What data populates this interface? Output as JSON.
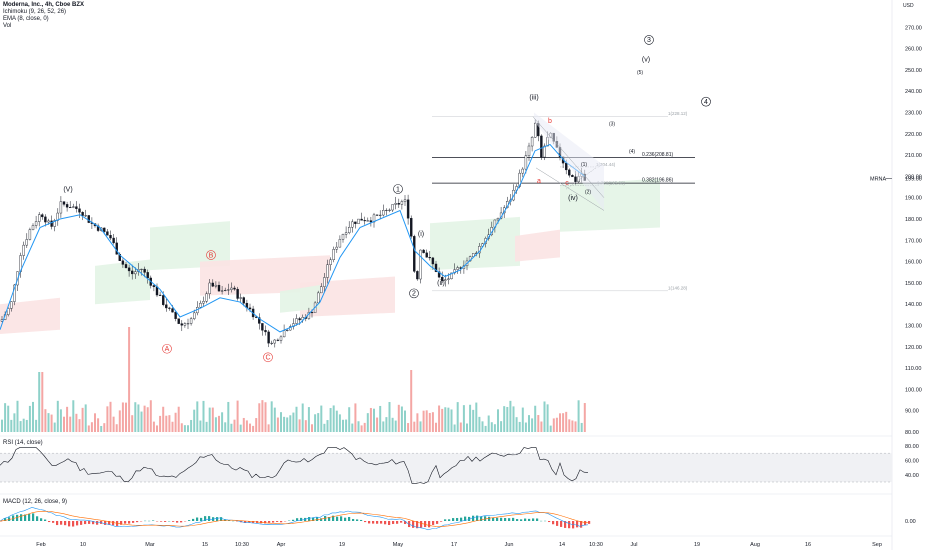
{
  "legend": {
    "title": "Moderna, Inc., 4h, Cboe BZX",
    "ichimoku": "Ichimoku (9, 26, 52, 26)",
    "ema": "EMA (8, close, 0)",
    "vol": "Vol",
    "rsi": "RSI (14, close)",
    "macd": "MACD (12, 26, close, 9)"
  },
  "currency": "USD",
  "price_tag": {
    "symbol": "MRNA",
    "value": "199.00"
  },
  "colors": {
    "up": "#26a69a",
    "down": "#ef5350",
    "ema": "#2196f3",
    "rsi": "#131722",
    "cloud_bull": "#e3f4e5",
    "cloud_bear": "#fbe3e3"
  },
  "chart_data": {
    "type": "candlestick",
    "price_axis": {
      "ylim": [
        80,
        280
      ],
      "ticks": [
        "270.00",
        "260.00",
        "250.00",
        "240.00",
        "230.00",
        "220.00",
        "210.00",
        "200.00",
        "190.00",
        "180.00",
        "170.00",
        "160.00",
        "150.00",
        "140.00",
        "130.00",
        "120.00",
        "110.00",
        "100.00",
        "90.00",
        "80.00"
      ]
    },
    "x_ticks": [
      "Feb",
      "10",
      "Mar",
      "15",
      "10:30",
      "Apr",
      "19",
      "May",
      "17",
      "Jun",
      "14",
      "10:30",
      "Jul",
      "19",
      "Aug",
      "16",
      "Sep"
    ],
    "price_path": [
      [
        0,
        132
      ],
      [
        10,
        140
      ],
      [
        20,
        165
      ],
      [
        30,
        176
      ],
      [
        40,
        183
      ],
      [
        50,
        176
      ],
      [
        60,
        187
      ],
      [
        70,
        186
      ],
      [
        80,
        184
      ],
      [
        90,
        178
      ],
      [
        100,
        175
      ],
      [
        110,
        171
      ],
      [
        120,
        160
      ],
      [
        130,
        154
      ],
      [
        140,
        157
      ],
      [
        150,
        150
      ],
      [
        160,
        142
      ],
      [
        170,
        136
      ],
      [
        180,
        130
      ],
      [
        190,
        133
      ],
      [
        200,
        140
      ],
      [
        210,
        150
      ],
      [
        220,
        145
      ],
      [
        230,
        148
      ],
      [
        240,
        142
      ],
      [
        250,
        137
      ],
      [
        260,
        130
      ],
      [
        270,
        121
      ],
      [
        280,
        126
      ],
      [
        290,
        131
      ],
      [
        300,
        133
      ],
      [
        310,
        136
      ],
      [
        320,
        148
      ],
      [
        330,
        162
      ],
      [
        340,
        172
      ],
      [
        350,
        178
      ],
      [
        360,
        180
      ],
      [
        370,
        180
      ],
      [
        380,
        182
      ],
      [
        390,
        185
      ],
      [
        400,
        188
      ],
      [
        405,
        188
      ],
      [
        410,
        173
      ],
      [
        415,
        147
      ],
      [
        420,
        168
      ],
      [
        425,
        163
      ],
      [
        430,
        160
      ],
      [
        435,
        156
      ],
      [
        440,
        150
      ],
      [
        450,
        153
      ],
      [
        460,
        158
      ],
      [
        470,
        162
      ],
      [
        480,
        168
      ],
      [
        490,
        175
      ],
      [
        500,
        183
      ],
      [
        510,
        190
      ],
      [
        520,
        202
      ],
      [
        530,
        216
      ],
      [
        535,
        226
      ],
      [
        540,
        208
      ],
      [
        545,
        217
      ],
      [
        550,
        219
      ],
      [
        555,
        213
      ],
      [
        560,
        209
      ],
      [
        565,
        204
      ],
      [
        570,
        200
      ],
      [
        575,
        198
      ],
      [
        580,
        202
      ],
      [
        585,
        196
      ]
    ],
    "ema_path": [
      [
        0,
        128
      ],
      [
        20,
        155
      ],
      [
        40,
        176
      ],
      [
        60,
        180
      ],
      [
        80,
        182
      ],
      [
        100,
        176
      ],
      [
        120,
        163
      ],
      [
        140,
        155
      ],
      [
        160,
        147
      ],
      [
        180,
        134
      ],
      [
        200,
        138
      ],
      [
        220,
        143
      ],
      [
        240,
        141
      ],
      [
        260,
        133
      ],
      [
        280,
        127
      ],
      [
        300,
        131
      ],
      [
        320,
        141
      ],
      [
        340,
        162
      ],
      [
        360,
        176
      ],
      [
        380,
        180
      ],
      [
        400,
        184
      ],
      [
        415,
        165
      ],
      [
        430,
        158
      ],
      [
        445,
        153
      ],
      [
        460,
        156
      ],
      [
        480,
        165
      ],
      [
        500,
        180
      ],
      [
        520,
        196
      ],
      [
        535,
        212
      ],
      [
        550,
        215
      ],
      [
        565,
        207
      ],
      [
        585,
        200
      ]
    ],
    "wave_labels": [
      {
        "text": "(V)",
        "x": 68,
        "price": 193
      },
      {
        "text": "A",
        "x": 167,
        "price": 118,
        "circle": true,
        "red": true
      },
      {
        "text": "B",
        "x": 211,
        "price": 162,
        "circle": true,
        "red": true
      },
      {
        "text": "C",
        "x": 268,
        "price": 114,
        "circle": true,
        "red": true
      },
      {
        "text": "1",
        "x": 398,
        "price": 193,
        "circle": true
      },
      {
        "text": "2",
        "x": 414,
        "price": 144,
        "circle": true
      },
      {
        "text": "(i)",
        "x": 421,
        "price": 172
      },
      {
        "text": "(ii)",
        "x": 441,
        "price": 149
      },
      {
        "text": "(iii)",
        "x": 534,
        "price": 236
      },
      {
        "text": "(iv)",
        "x": 573,
        "price": 189
      },
      {
        "text": "(v)",
        "x": 646,
        "price": 254
      },
      {
        "text": "3",
        "x": 649,
        "price": 263,
        "circle": true
      },
      {
        "text": "4",
        "x": 706,
        "price": 234,
        "circle": true
      },
      {
        "text": "(5)",
        "x": 640,
        "price": 248
      },
      {
        "text": "(4)",
        "x": 632,
        "price": 211
      },
      {
        "text": "(3)",
        "x": 612,
        "price": 224
      },
      {
        "text": "(1)",
        "x": 584,
        "price": 205
      },
      {
        "text": "(2)",
        "x": 588,
        "price": 192
      },
      {
        "text": "b",
        "x": 550,
        "price": 225,
        "red": true
      },
      {
        "text": "a",
        "x": 539,
        "price": 197,
        "red": true
      },
      {
        "text": "c",
        "x": 567,
        "price": 196,
        "red": true
      }
    ],
    "fib_levels": [
      {
        "label": "1(228.12)",
        "price": 228.12,
        "solid": false
      },
      {
        "label": "0.236(208.81)",
        "price": 208.81,
        "solid": true
      },
      {
        "label": "0.382(196.86)",
        "price": 196.86,
        "solid": true
      },
      {
        "label": "1(146.28)",
        "price": 146.28,
        "solid": false
      }
    ],
    "fib_extra": [
      {
        "label": "0.786(195.68)",
        "price": 195.68
      },
      {
        "label": "1(204.44)",
        "price": 204.44
      }
    ],
    "rsi": {
      "ticks": [
        "80.00",
        "60.00",
        "40.00"
      ],
      "overbought": 70,
      "oversold": 30
    },
    "macd": {
      "ticks": [
        "0.00"
      ]
    }
  }
}
